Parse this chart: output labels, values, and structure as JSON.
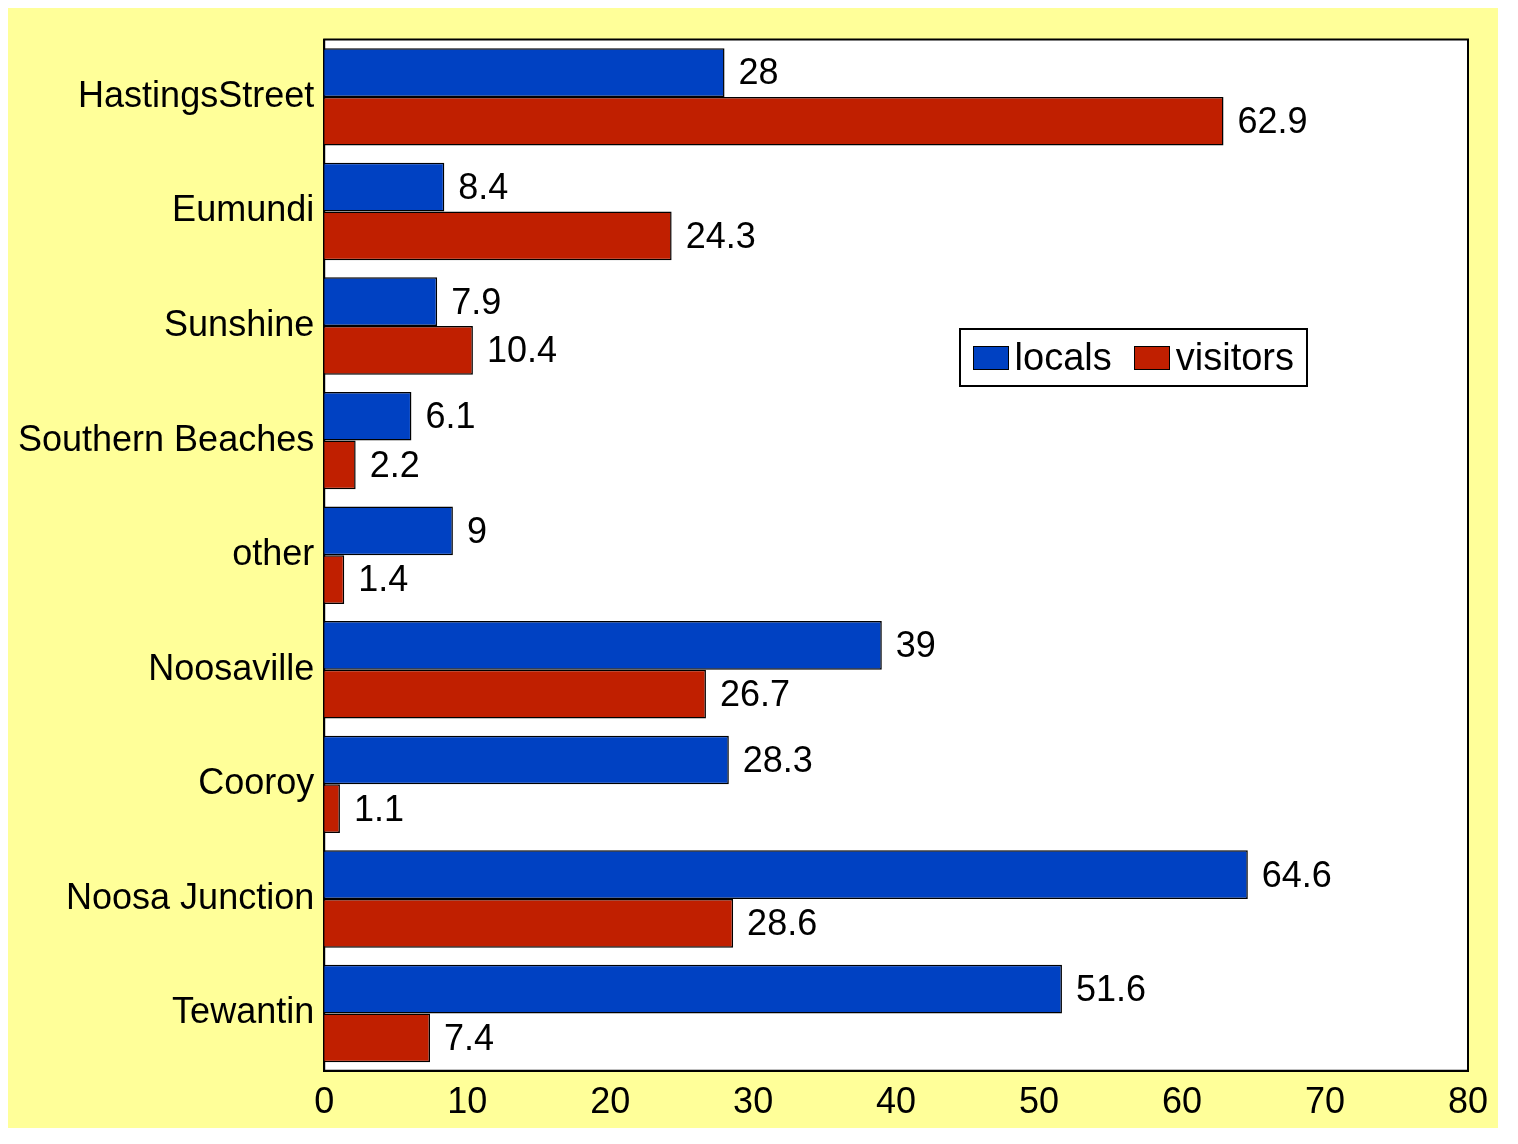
{
  "chart_data": {
    "type": "bar",
    "orientation": "horizontal",
    "categories": [
      "HastingsStreet",
      "Eumundi",
      "Sunshine",
      "Southern Beaches",
      "other",
      "Noosaville",
      "Cooroy",
      "Noosa Junction",
      "Tewantin"
    ],
    "series": [
      {
        "name": "locals",
        "color": "#0041c2",
        "values": [
          28,
          8.4,
          7.9,
          6.1,
          9,
          39,
          28.3,
          64.6,
          51.6
        ]
      },
      {
        "name": "visitors",
        "color": "#c01f00",
        "values": [
          62.9,
          24.3,
          10.4,
          2.2,
          1.4,
          26.7,
          1.1,
          28.6,
          7.4
        ]
      }
    ],
    "xlim": [
      0,
      80
    ],
    "xticks": [
      0,
      10,
      20,
      30,
      40,
      50,
      60,
      70,
      80
    ],
    "data_labels": true,
    "legend": "right",
    "grid": false
  }
}
